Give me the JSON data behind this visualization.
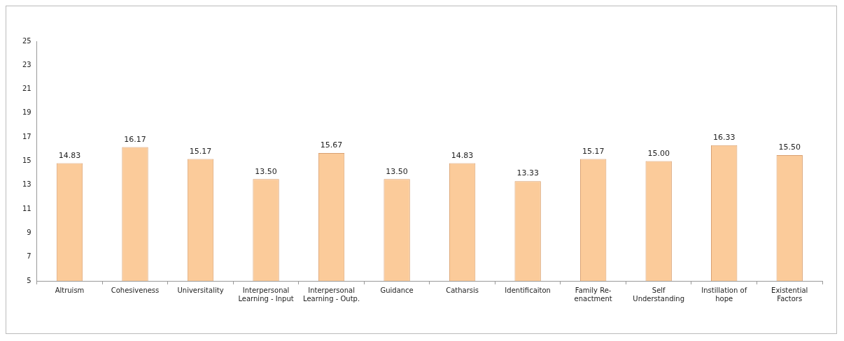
{
  "chart_data": {
    "type": "bar",
    "categories": [
      "Altruism",
      "Cohesiveness",
      "Universitality",
      "Interpersonal Learning - Input",
      "Interpersonal Learning - Outp.",
      "Guidance",
      "Catharsis",
      "Identificaiton",
      "Family Re-enactment",
      "Self Understanding",
      "Instillation of hope",
      "Existential Factors"
    ],
    "values": [
      14.83,
      16.17,
      15.17,
      13.5,
      15.67,
      13.5,
      14.83,
      13.33,
      15.17,
      15,
      16.33,
      15.5
    ],
    "value_labels": [
      "14.83",
      "16.17",
      "15.17",
      "13.50",
      "15.67",
      "13.50",
      "14.83",
      "13.33",
      "15.17",
      "15.00",
      "16.33",
      "15.50"
    ],
    "color": "#fbcb9a",
    "ylim": [
      5,
      25
    ],
    "yticks": [
      5,
      7,
      9,
      11,
      13,
      15,
      17,
      19,
      21,
      23,
      25
    ],
    "grid": false,
    "legend": false
  }
}
